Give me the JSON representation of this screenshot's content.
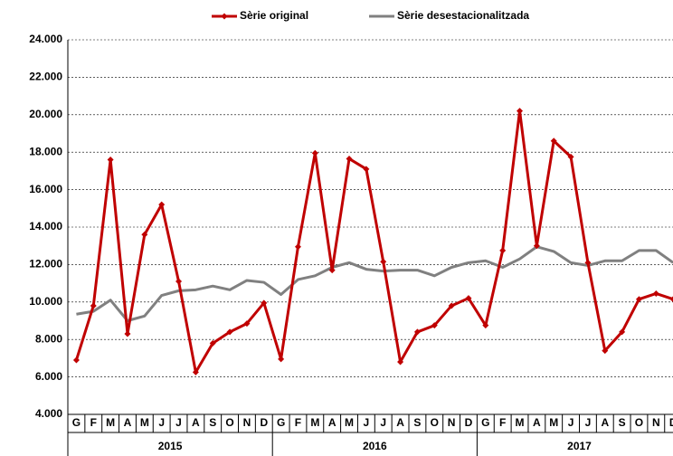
{
  "chart_data": {
    "type": "line",
    "categories": [
      "G",
      "F",
      "M",
      "A",
      "M",
      "J",
      "J",
      "A",
      "S",
      "O",
      "N",
      "D",
      "G",
      "F",
      "M",
      "A",
      "M",
      "J",
      "J",
      "A",
      "S",
      "O",
      "N",
      "D",
      "G",
      "F",
      "M",
      "A",
      "M",
      "J",
      "J",
      "A",
      "S",
      "O",
      "N",
      "D"
    ],
    "x_groups": [
      "2015",
      "2016",
      "2017"
    ],
    "series": [
      {
        "name": "Sèrie original",
        "color": "#c00000",
        "marker": "diamond",
        "values": [
          6900,
          9800,
          17600,
          8300,
          13600,
          15200,
          11100,
          6250,
          7800,
          8400,
          8850,
          9950,
          6950,
          12950,
          17950,
          11700,
          17650,
          17100,
          12150,
          6800,
          8400,
          8750,
          9800,
          10200,
          8750,
          12750,
          20200,
          13000,
          18600,
          17750,
          12100,
          7400,
          8400,
          10150,
          10450,
          10150
        ]
      },
      {
        "name": "Sèrie desestacionalitzada",
        "color": "#808080",
        "values": [
          9350,
          9500,
          10100,
          9000,
          9250,
          10350,
          10600,
          10650,
          10850,
          10650,
          11150,
          11050,
          10400,
          11200,
          11400,
          11850,
          12100,
          11750,
          11650,
          11700,
          11700,
          11400,
          11850,
          12100,
          12200,
          11850,
          12300,
          12950,
          12700,
          12100,
          11950,
          12200,
          12200,
          12750,
          12750,
          12100
        ]
      }
    ],
    "ylim": [
      4000,
      24000
    ],
    "yticks": [
      {
        "value": 4000,
        "label": "4.000"
      },
      {
        "value": 6000,
        "label": "6.000"
      },
      {
        "value": 8000,
        "label": "8.000"
      },
      {
        "value": 10000,
        "label": "10.000"
      },
      {
        "value": 12000,
        "label": "12.000"
      },
      {
        "value": 14000,
        "label": "14.000"
      },
      {
        "value": 16000,
        "label": "16.000"
      },
      {
        "value": 18000,
        "label": "18.000"
      },
      {
        "value": 20000,
        "label": "20.000"
      },
      {
        "value": 22000,
        "label": "22.000"
      },
      {
        "value": 24000,
        "label": "24.000"
      }
    ],
    "grid": true,
    "legend": "top"
  }
}
